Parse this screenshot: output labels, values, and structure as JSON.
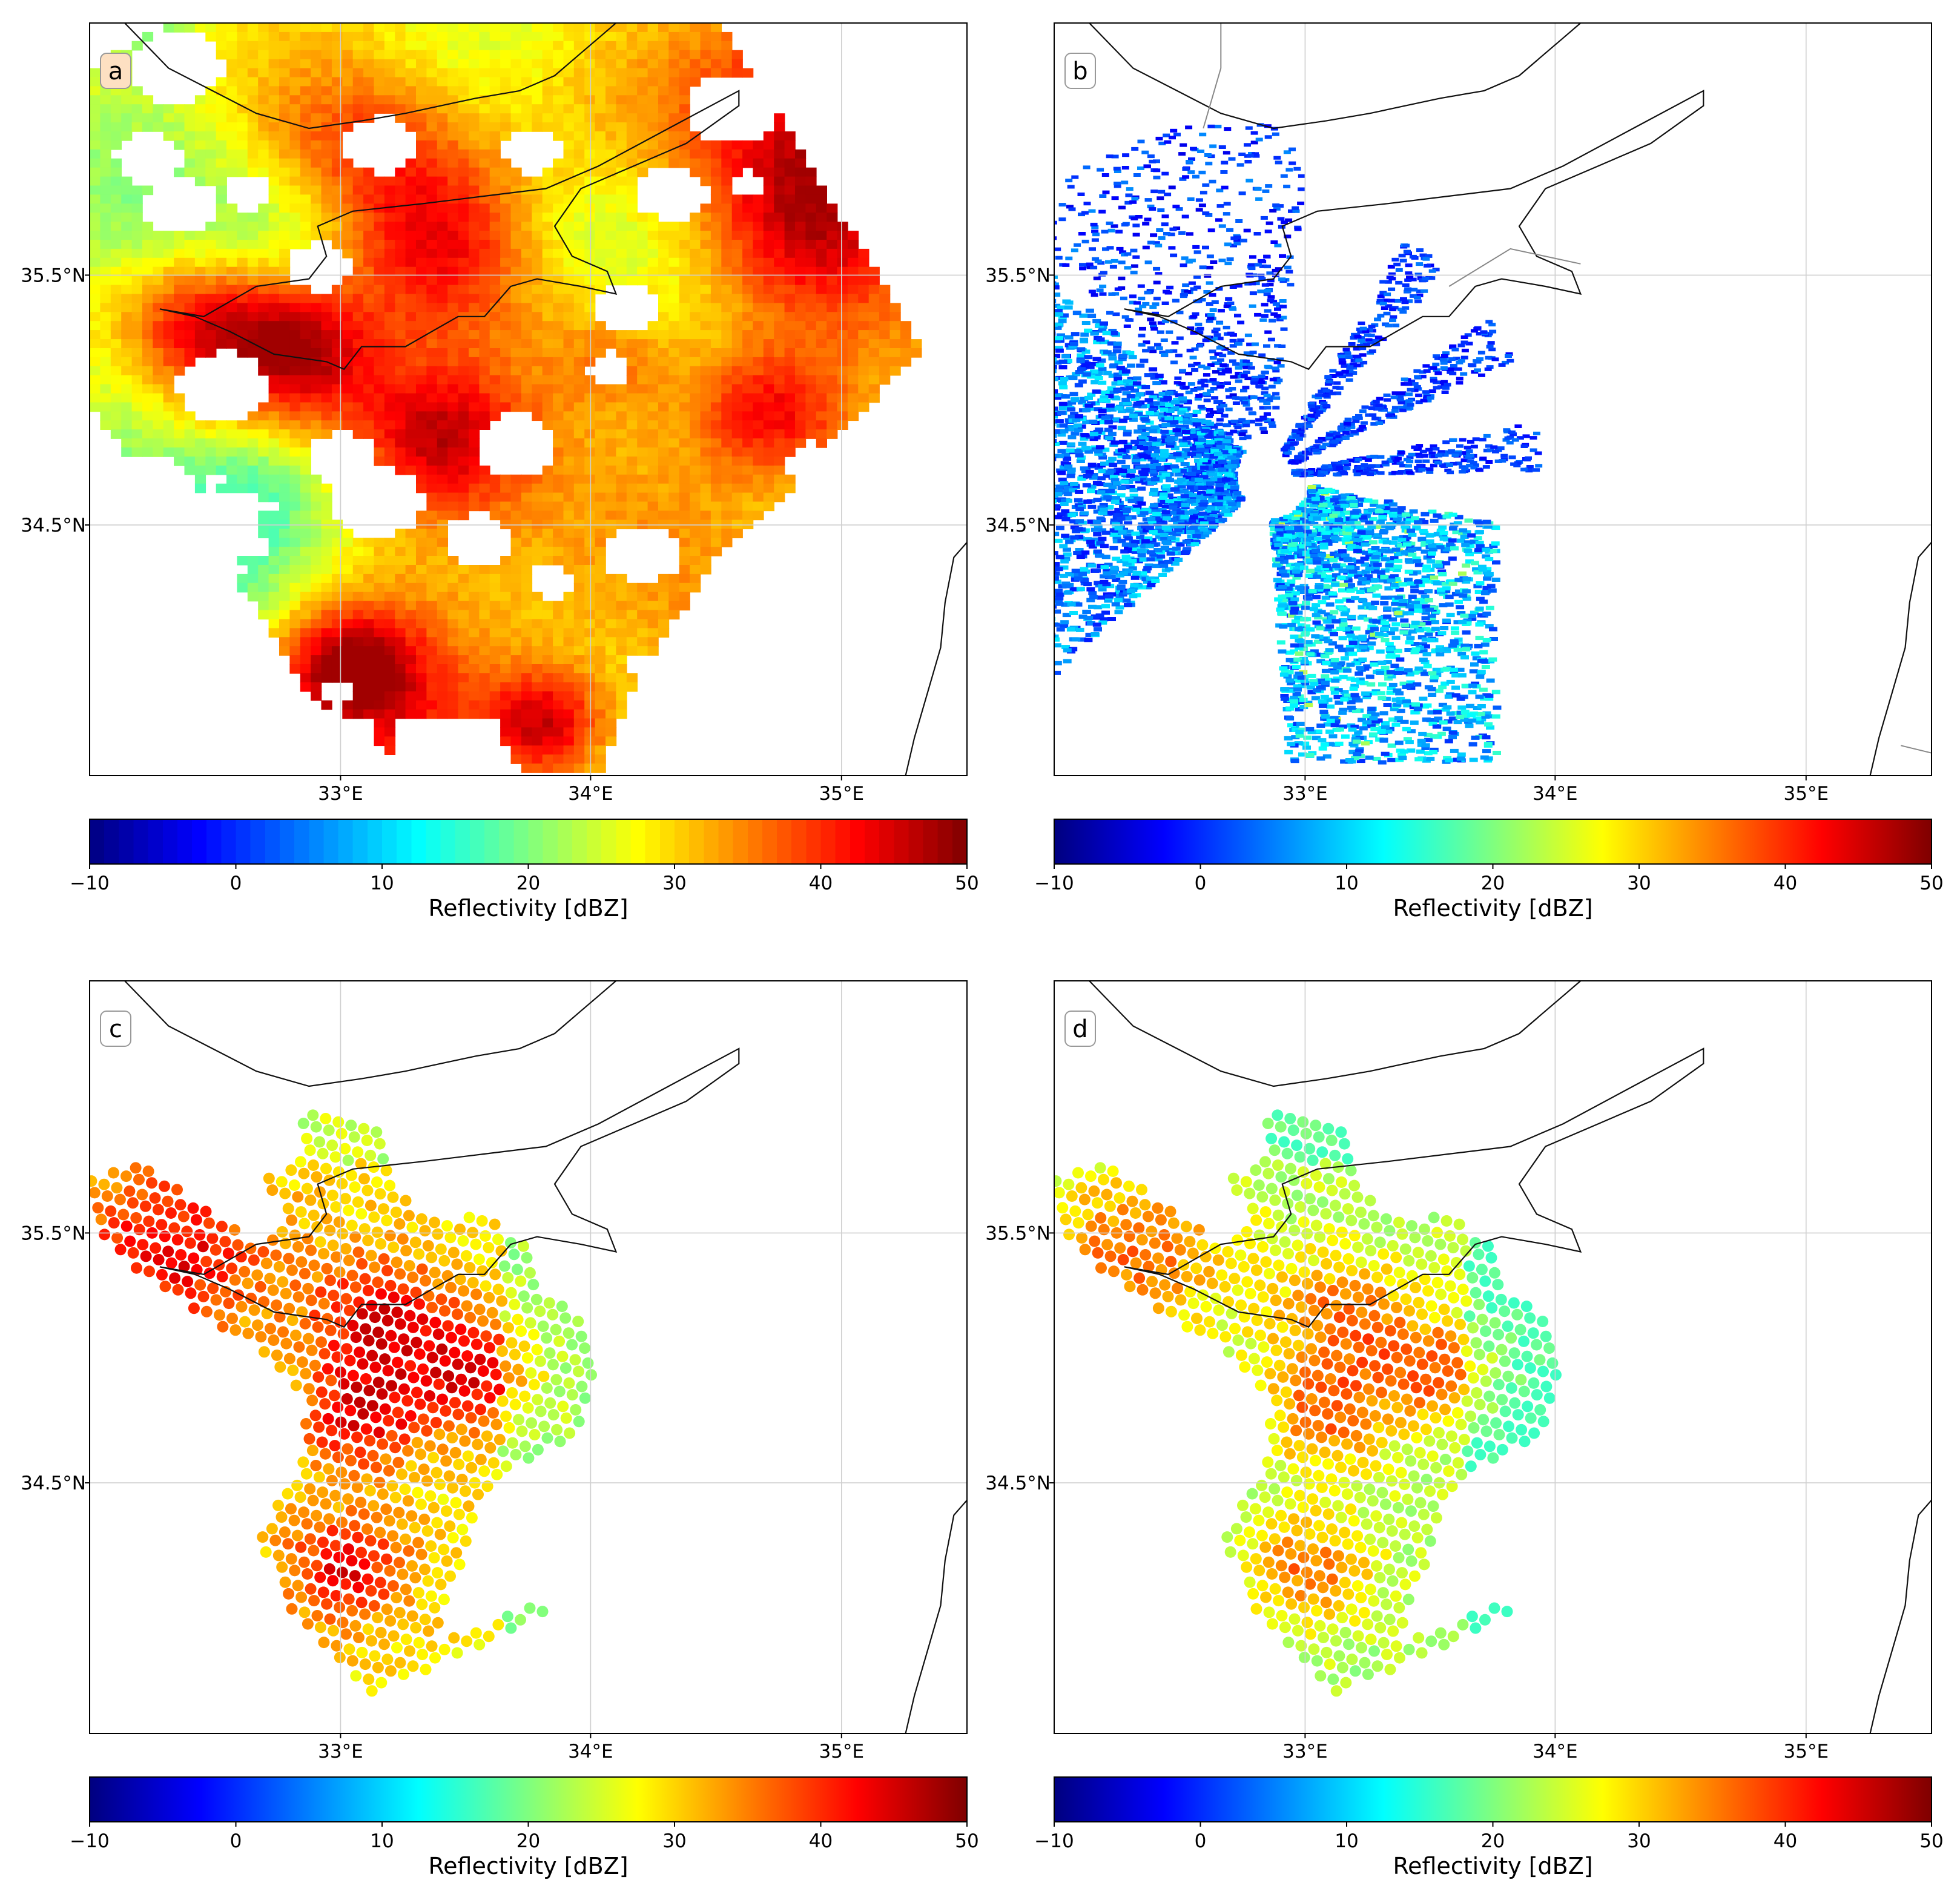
{
  "colors": {
    "colormap_jet": [
      "#00007f",
      "#0000ff",
      "#007fff",
      "#00ffff",
      "#7fff7f",
      "#ffff00",
      "#ff7f00",
      "#ff0000",
      "#7f0000"
    ]
  },
  "chart_data": [
    {
      "id": "a",
      "type": "heatmap",
      "label": "a",
      "title": "",
      "lon_range": [
        32.0,
        35.5
      ],
      "lat_range": [
        33.5,
        36.5
      ],
      "x_ticks": [
        "33°E",
        "34°E",
        "35°E"
      ],
      "y_ticks": [
        "35.5°N",
        "34.5°N"
      ],
      "colorbar": {
        "label": "Reflectivity [dBZ]",
        "min": -10,
        "max": 50,
        "ticks": [
          "−10",
          "0",
          "10",
          "20",
          "30",
          "40",
          "50"
        ]
      },
      "field": {
        "dominant_dbz_range": [
          20,
          45
        ],
        "peak_dbz": 48,
        "description_key": "mesoscale precipitation field"
      }
    },
    {
      "id": "b",
      "type": "heatmap",
      "label": "b",
      "title": "",
      "lon_range": [
        32.0,
        35.5
      ],
      "lat_range": [
        33.5,
        36.5
      ],
      "x_ticks": [
        "33°E",
        "34°E",
        "35°E"
      ],
      "y_ticks": [
        "35.5°N",
        "34.5°N"
      ],
      "colorbar": {
        "label": "Reflectivity [dBZ]",
        "min": -10,
        "max": 50,
        "ticks": [
          "−10",
          "0",
          "10",
          "20",
          "30",
          "40",
          "50"
        ]
      },
      "field": {
        "dominant_dbz_range": [
          0,
          20
        ],
        "peak_dbz": 30,
        "description_key": "radar ppi echo"
      }
    },
    {
      "id": "c",
      "type": "scatter",
      "label": "c",
      "title": "",
      "lon_range": [
        32.0,
        35.5
      ],
      "lat_range": [
        33.5,
        36.5
      ],
      "x_ticks": [
        "33°E",
        "34°E",
        "35°E"
      ],
      "y_ticks": [
        "35.5°N",
        "34.5°N"
      ],
      "colorbar": {
        "label": "Reflectivity [dBZ]",
        "min": -10,
        "max": 50,
        "ticks": [
          "−10",
          "0",
          "10",
          "20",
          "30",
          "40",
          "50"
        ]
      },
      "points": {
        "dbz_range": [
          16,
          46
        ],
        "mean_dbz": 32
      }
    },
    {
      "id": "d",
      "type": "scatter",
      "label": "d",
      "title": "",
      "lon_range": [
        32.0,
        35.5
      ],
      "lat_range": [
        33.5,
        36.5
      ],
      "x_ticks": [
        "33°E",
        "34°E",
        "35°E"
      ],
      "y_ticks": [
        "35.5°N",
        "34.5°N"
      ],
      "colorbar": {
        "label": "Reflectivity [dBZ]",
        "min": -10,
        "max": 50,
        "ticks": [
          "−10",
          "0",
          "10",
          "20",
          "30",
          "40",
          "50"
        ]
      },
      "points": {
        "dbz_range": [
          16,
          44
        ],
        "mean_dbz": 26
      }
    }
  ]
}
